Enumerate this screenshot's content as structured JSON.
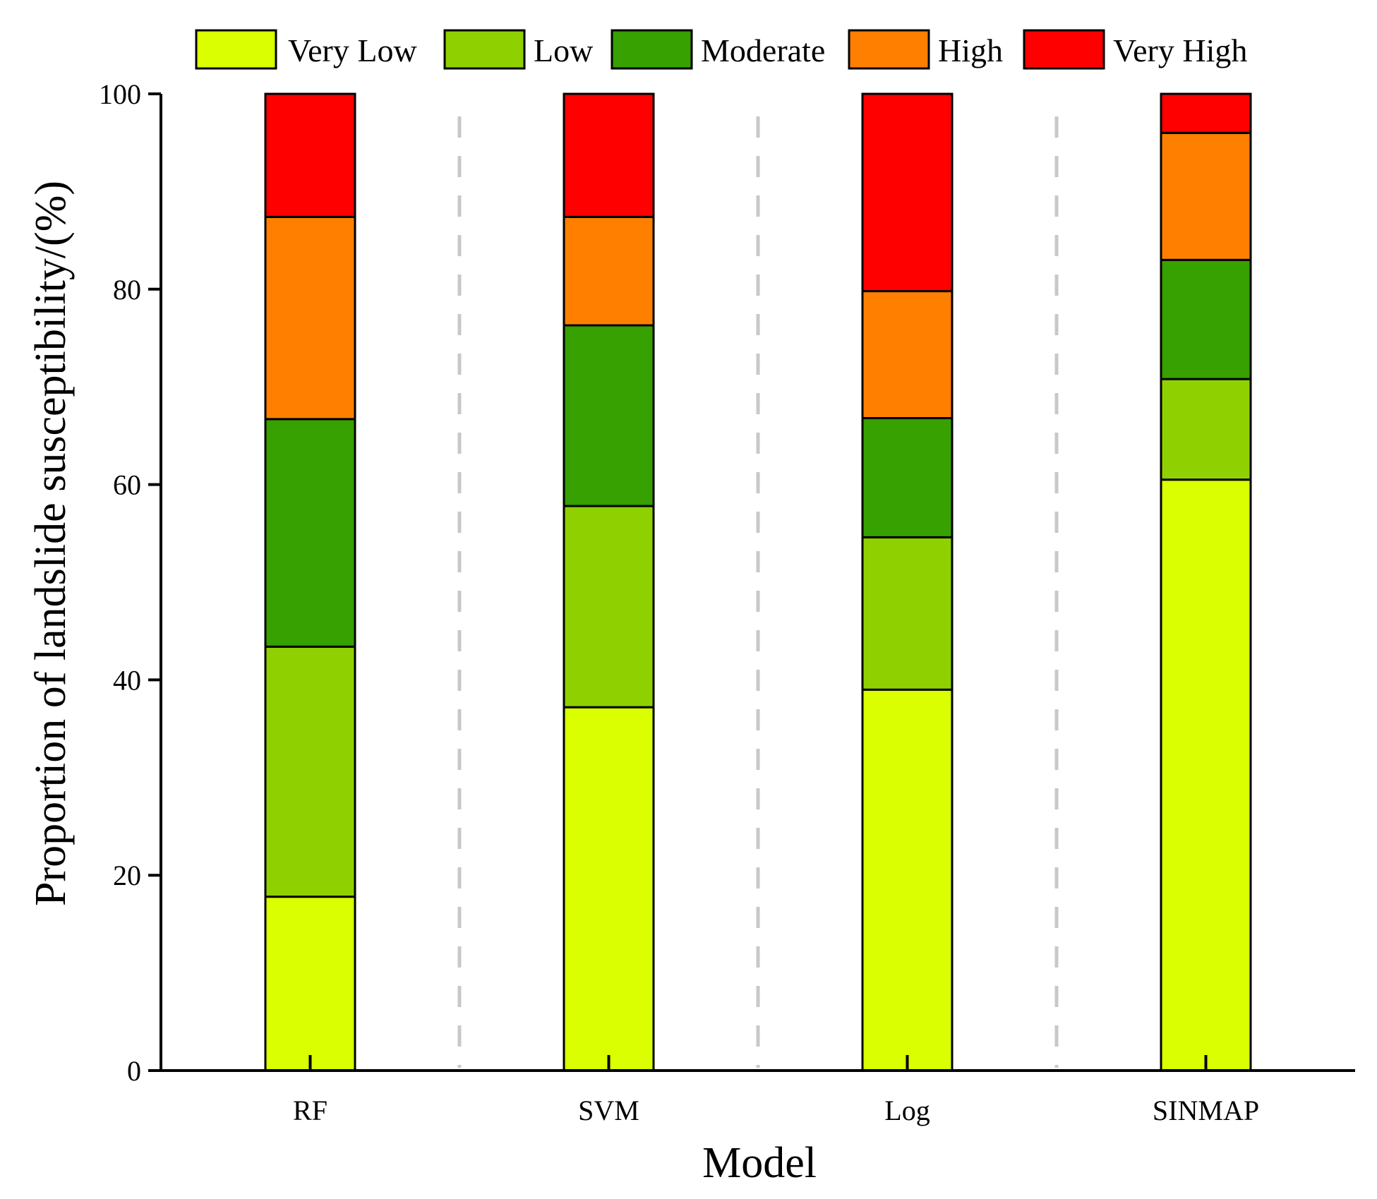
{
  "chart_data": {
    "type": "bar",
    "stacked": true,
    "title": "",
    "xlabel": "Model",
    "ylabel": "Proportion of landslide susceptibility/(%)",
    "ylim": [
      0,
      100
    ],
    "yticks": [
      "0",
      "20",
      "40",
      "60",
      "80",
      "100"
    ],
    "categories": [
      "RF",
      "SVM",
      "Log",
      "SINMAP"
    ],
    "series": [
      {
        "name": "Very Low",
        "color": "#d9ff00",
        "values": [
          17.8,
          37.2,
          39.0,
          60.5
        ]
      },
      {
        "name": "Low",
        "color": "#8fd100",
        "values": [
          25.6,
          20.6,
          15.6,
          10.3
        ]
      },
      {
        "name": "Moderate",
        "color": "#36a100",
        "values": [
          23.3,
          18.5,
          12.2,
          12.2
        ]
      },
      {
        "name": "High",
        "color": "#ff8000",
        "values": [
          20.7,
          11.1,
          13.0,
          13.0
        ]
      },
      {
        "name": "Very High",
        "color": "#ff0000",
        "values": [
          12.6,
          12.6,
          20.2,
          4.0
        ]
      }
    ],
    "legend_position": "top",
    "separator_color": "#c8c8c8"
  }
}
